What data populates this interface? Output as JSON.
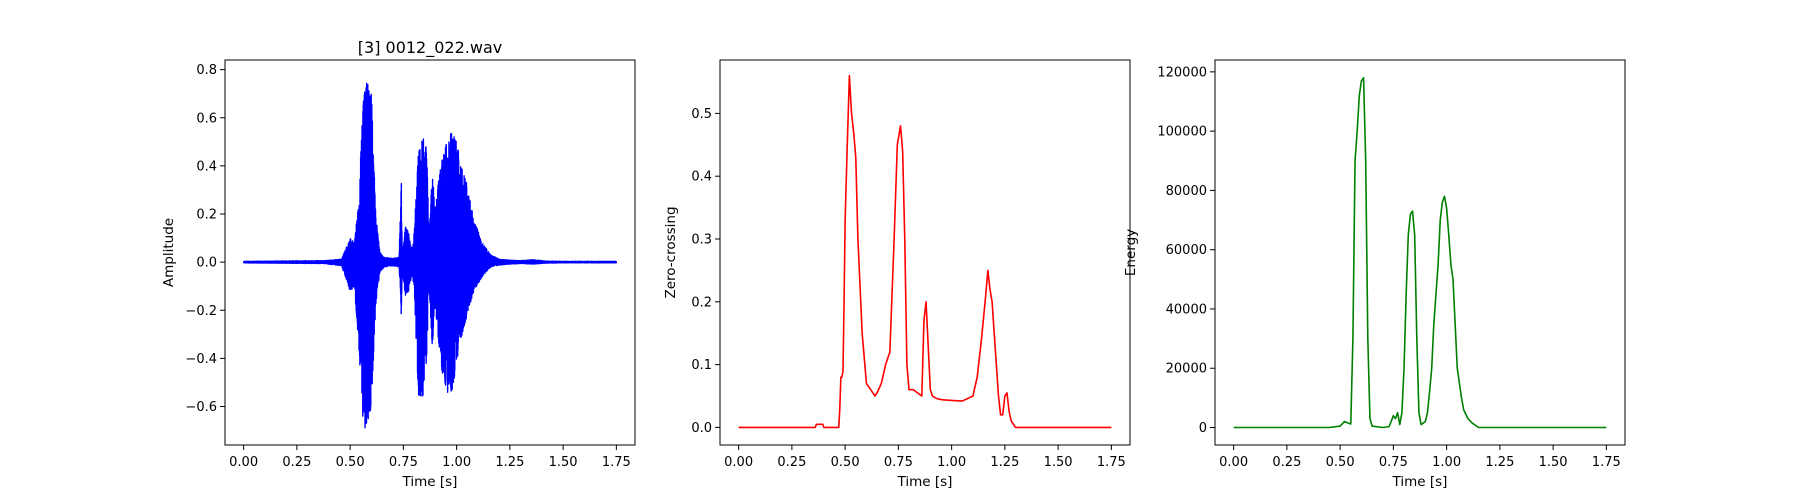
{
  "chart_data": [
    {
      "type": "line",
      "title": "[3] 0012_022.wav",
      "xlabel": "Time [s]",
      "ylabel": "Amplitude",
      "color": "#0000ff",
      "xlim": [
        -0.0875,
        1.8375
      ],
      "ylim": [
        -0.76,
        0.84
      ],
      "xticks": [
        0.0,
        0.25,
        0.5,
        0.75,
        1.0,
        1.25,
        1.5,
        1.75
      ],
      "xtick_labels": [
        "0.00",
        "0.25",
        "0.50",
        "0.75",
        "1.00",
        "1.25",
        "1.50",
        "1.75"
      ],
      "yticks": [
        -0.6,
        -0.4,
        -0.2,
        0.0,
        0.2,
        0.4,
        0.6,
        0.8
      ],
      "ytick_labels": [
        "−0.6",
        "−0.4",
        "−0.2",
        "0.0",
        "0.2",
        "0.4",
        "0.6",
        "0.8"
      ],
      "envelope": {
        "t": [
          0.0,
          0.38,
          0.46,
          0.5,
          0.52,
          0.54,
          0.56,
          0.57,
          0.58,
          0.6,
          0.61,
          0.62,
          0.64,
          0.66,
          0.7,
          0.73,
          0.74,
          0.745,
          0.76,
          0.775,
          0.79,
          0.8,
          0.82,
          0.84,
          0.86,
          0.87,
          0.885,
          0.9,
          0.93,
          0.96,
          0.98,
          1.0,
          1.02,
          1.05,
          1.08,
          1.12,
          1.16,
          1.2,
          1.25,
          1.3,
          1.36,
          1.42,
          1.5,
          1.75
        ],
        "upper": [
          0.003,
          0.006,
          0.012,
          0.1,
          0.08,
          0.25,
          0.65,
          0.72,
          0.76,
          0.7,
          0.45,
          0.2,
          0.04,
          0.02,
          0.015,
          0.02,
          0.35,
          0.04,
          0.15,
          0.12,
          0.05,
          0.12,
          0.45,
          0.52,
          0.48,
          0.1,
          0.36,
          0.25,
          0.42,
          0.52,
          0.54,
          0.5,
          0.4,
          0.32,
          0.18,
          0.08,
          0.03,
          0.012,
          0.008,
          0.006,
          0.01,
          0.004,
          0.003,
          0.003
        ],
        "lower": [
          -0.003,
          -0.006,
          -0.015,
          -0.12,
          -0.1,
          -0.35,
          -0.65,
          -0.69,
          -0.67,
          -0.6,
          -0.4,
          -0.18,
          -0.04,
          -0.02,
          -0.015,
          -0.02,
          -0.22,
          -0.04,
          -0.14,
          -0.12,
          -0.05,
          -0.1,
          -0.55,
          -0.57,
          -0.4,
          -0.08,
          -0.35,
          -0.2,
          -0.45,
          -0.55,
          -0.53,
          -0.42,
          -0.32,
          -0.22,
          -0.12,
          -0.06,
          -0.02,
          -0.012,
          -0.008,
          -0.006,
          -0.008,
          -0.004,
          -0.003,
          -0.003
        ]
      }
    },
    {
      "type": "line",
      "title": "",
      "xlabel": "Time [s]",
      "ylabel": "Zero-crossing",
      "color": "#ff0000",
      "xlim": [
        -0.0875,
        1.8375
      ],
      "ylim": [
        -0.028,
        0.585
      ],
      "xticks": [
        0.0,
        0.25,
        0.5,
        0.75,
        1.0,
        1.25,
        1.5,
        1.75
      ],
      "xtick_labels": [
        "0.00",
        "0.25",
        "0.50",
        "0.75",
        "1.00",
        "1.25",
        "1.50",
        "1.75"
      ],
      "yticks": [
        0.0,
        0.1,
        0.2,
        0.3,
        0.4,
        0.5
      ],
      "ytick_labels": [
        "0.0",
        "0.1",
        "0.2",
        "0.3",
        "0.4",
        "0.5"
      ],
      "x": [
        0.0,
        0.36,
        0.365,
        0.395,
        0.4,
        0.47,
        0.475,
        0.48,
        0.485,
        0.49,
        0.495,
        0.5,
        0.51,
        0.52,
        0.53,
        0.54,
        0.55,
        0.56,
        0.58,
        0.6,
        0.62,
        0.64,
        0.65,
        0.67,
        0.69,
        0.71,
        0.73,
        0.745,
        0.76,
        0.77,
        0.78,
        0.79,
        0.8,
        0.81,
        0.82,
        0.84,
        0.86,
        0.87,
        0.88,
        0.9,
        0.91,
        0.92,
        0.93,
        0.94,
        0.96,
        1.0,
        1.05,
        1.1,
        1.12,
        1.14,
        1.16,
        1.17,
        1.18,
        1.19,
        1.2,
        1.21,
        1.22,
        1.23,
        1.24,
        1.25,
        1.26,
        1.27,
        1.28,
        1.29,
        1.3,
        1.31,
        1.32,
        1.33,
        1.75
      ],
      "y": [
        0.0,
        0.0,
        0.005,
        0.005,
        0.0,
        0.0,
        0.03,
        0.08,
        0.08,
        0.09,
        0.2,
        0.33,
        0.45,
        0.56,
        0.5,
        0.47,
        0.43,
        0.3,
        0.15,
        0.07,
        0.06,
        0.05,
        0.055,
        0.07,
        0.1,
        0.12,
        0.3,
        0.45,
        0.48,
        0.44,
        0.3,
        0.1,
        0.06,
        0.06,
        0.06,
        0.055,
        0.05,
        0.17,
        0.2,
        0.06,
        0.05,
        0.048,
        0.046,
        0.045,
        0.044,
        0.043,
        0.042,
        0.05,
        0.08,
        0.14,
        0.21,
        0.25,
        0.22,
        0.2,
        0.15,
        0.1,
        0.05,
        0.02,
        0.02,
        0.05,
        0.055,
        0.025,
        0.01,
        0.005,
        0.0,
        0.0,
        0.0,
        0.0,
        0.0
      ]
    },
    {
      "type": "line",
      "title": "",
      "xlabel": "Time [s]",
      "ylabel": "Energy",
      "color": "#008000",
      "xlim": [
        -0.0875,
        1.8375
      ],
      "ylim": [
        -5900,
        124000
      ],
      "xticks": [
        0.0,
        0.25,
        0.5,
        0.75,
        1.0,
        1.25,
        1.5,
        1.75
      ],
      "xtick_labels": [
        "0.00",
        "0.25",
        "0.50",
        "0.75",
        "1.00",
        "1.25",
        "1.50",
        "1.75"
      ],
      "yticks": [
        0,
        20000,
        40000,
        60000,
        80000,
        100000,
        120000
      ],
      "ytick_labels": [
        "0",
        "20000",
        "40000",
        "60000",
        "80000",
        "100000",
        "120000"
      ],
      "x": [
        0.0,
        0.45,
        0.5,
        0.52,
        0.55,
        0.56,
        0.57,
        0.58,
        0.59,
        0.6,
        0.61,
        0.62,
        0.63,
        0.64,
        0.65,
        0.7,
        0.73,
        0.75,
        0.76,
        0.77,
        0.78,
        0.79,
        0.8,
        0.81,
        0.82,
        0.83,
        0.84,
        0.85,
        0.86,
        0.87,
        0.88,
        0.9,
        0.91,
        0.92,
        0.93,
        0.94,
        0.95,
        0.96,
        0.97,
        0.98,
        0.99,
        1.0,
        1.01,
        1.02,
        1.03,
        1.04,
        1.05,
        1.06,
        1.07,
        1.08,
        1.1,
        1.12,
        1.14,
        1.15,
        1.2,
        1.75
      ],
      "y": [
        0,
        0,
        500,
        2000,
        1200,
        30000,
        90000,
        100000,
        112000,
        117000,
        118000,
        90000,
        30000,
        3000,
        500,
        0,
        300,
        4000,
        3000,
        5000,
        1000,
        5000,
        20000,
        45000,
        65000,
        72000,
        73000,
        65000,
        30000,
        5000,
        1000,
        2000,
        5000,
        12000,
        20000,
        35000,
        45000,
        55000,
        70000,
        76000,
        78000,
        74000,
        65000,
        55000,
        50000,
        35000,
        20000,
        15000,
        10000,
        6000,
        3000,
        1500,
        500,
        0,
        0,
        0
      ]
    }
  ]
}
